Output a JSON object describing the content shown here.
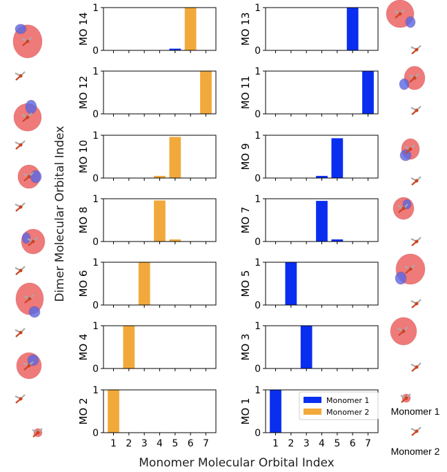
{
  "colors": {
    "monomer1": "#0a2ef0",
    "monomer2": "#f2a93b",
    "lobe_red": "#e84d4d",
    "lobe_blue": "#5668e6"
  },
  "labels": {
    "ylabel": "Dimer Molecular Orbital Index",
    "xlabel": "Monomer Molecular Orbital Index",
    "monomer1": "Monomer 1",
    "monomer2": "Monomer 2"
  },
  "legend": {
    "items": [
      "Monomer 1",
      "Monomer 2"
    ],
    "placement": "inside bottom-right of MO 1 panel"
  },
  "chart_data": {
    "type": "bar",
    "categories": [
      "1",
      "2",
      "3",
      "4",
      "5",
      "6",
      "7"
    ],
    "ylim": [
      0,
      1
    ],
    "yticks": [
      "0",
      "1"
    ],
    "xlabel": "Monomer Molecular Orbital Index",
    "ylabel": "Dimer Molecular Orbital Index",
    "panels": [
      {
        "label": "MO 14",
        "bars": [
          {
            "x": 5,
            "value": 0.04,
            "series": "Monomer 1"
          },
          {
            "x": 6,
            "value": 1.0,
            "series": "Monomer 2"
          }
        ]
      },
      {
        "label": "MO 13",
        "bars": [
          {
            "x": 6,
            "value": 1.0,
            "series": "Monomer 1"
          }
        ]
      },
      {
        "label": "MO 12",
        "bars": [
          {
            "x": 7,
            "value": 1.0,
            "series": "Monomer 2"
          }
        ]
      },
      {
        "label": "MO 11",
        "bars": [
          {
            "x": 7,
            "value": 1.0,
            "series": "Monomer 1"
          }
        ]
      },
      {
        "label": "MO 10",
        "bars": [
          {
            "x": 4,
            "value": 0.05,
            "series": "Monomer 2"
          },
          {
            "x": 5,
            "value": 0.96,
            "series": "Monomer 2"
          }
        ]
      },
      {
        "label": "MO 9",
        "bars": [
          {
            "x": 4,
            "value": 0.05,
            "series": "Monomer 1"
          },
          {
            "x": 5,
            "value": 0.93,
            "series": "Monomer 1"
          }
        ]
      },
      {
        "label": "MO 8",
        "bars": [
          {
            "x": 4,
            "value": 0.96,
            "series": "Monomer 2"
          },
          {
            "x": 5,
            "value": 0.05,
            "series": "Monomer 2"
          }
        ]
      },
      {
        "label": "MO 7",
        "bars": [
          {
            "x": 4,
            "value": 0.95,
            "series": "Monomer 1"
          },
          {
            "x": 5,
            "value": 0.05,
            "series": "Monomer 1"
          }
        ]
      },
      {
        "label": "MO 6",
        "bars": [
          {
            "x": 3,
            "value": 1.0,
            "series": "Monomer 2"
          }
        ]
      },
      {
        "label": "MO 5",
        "bars": [
          {
            "x": 2,
            "value": 1.0,
            "series": "Monomer 1"
          }
        ]
      },
      {
        "label": "MO 4",
        "bars": [
          {
            "x": 2,
            "value": 1.0,
            "series": "Monomer 2"
          }
        ]
      },
      {
        "label": "MO 3",
        "bars": [
          {
            "x": 3,
            "value": 1.0,
            "series": "Monomer 1"
          }
        ]
      },
      {
        "label": "MO 2",
        "bars": [
          {
            "x": 1,
            "value": 1.0,
            "series": "Monomer 2"
          }
        ]
      },
      {
        "label": "MO 1",
        "bars": [
          {
            "x": 1,
            "value": 1.0,
            "series": "Monomer 1"
          }
        ]
      }
    ]
  }
}
